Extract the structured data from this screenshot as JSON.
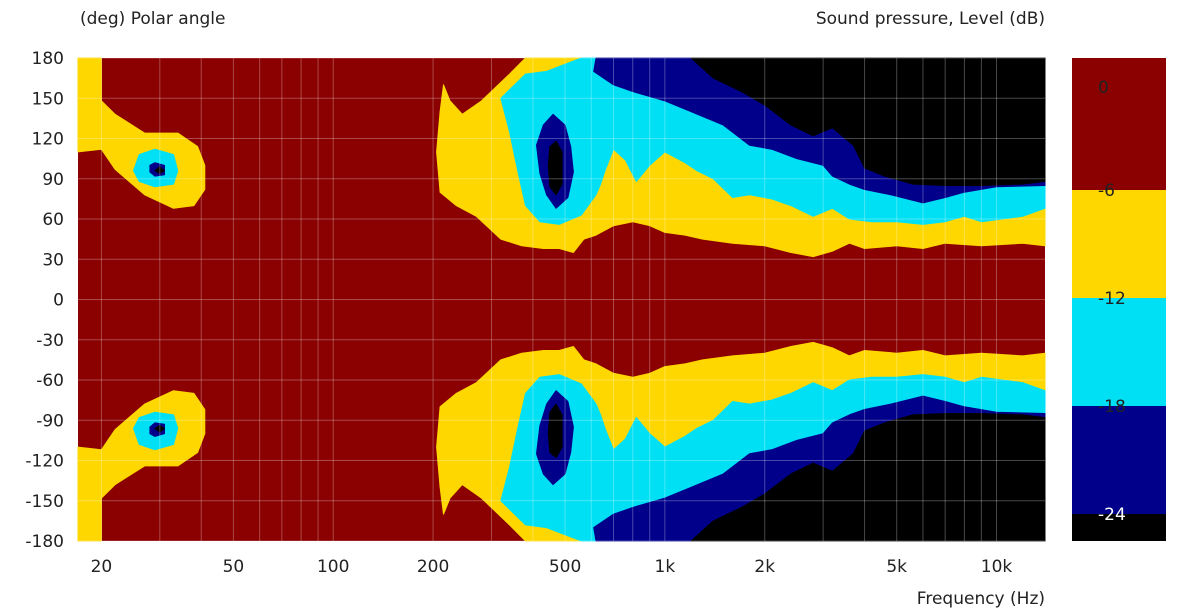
{
  "chart_data": {
    "type": "heatmap",
    "title_left": "(deg)  Polar angle",
    "title_right": "Sound pressure, Level  (dB)",
    "xlabel": "Frequency  (Hz)",
    "x_scale": "log",
    "xlim": [
      17,
      14000
    ],
    "ylim": [
      -180,
      180
    ],
    "x_ticks": [
      {
        "value": 20,
        "label": "20"
      },
      {
        "value": 50,
        "label": "50"
      },
      {
        "value": 100,
        "label": "100"
      },
      {
        "value": 200,
        "label": "200"
      },
      {
        "value": 500,
        "label": "500"
      },
      {
        "value": 1000,
        "label": "1k"
      },
      {
        "value": 2000,
        "label": "2k"
      },
      {
        "value": 5000,
        "label": "5k"
      },
      {
        "value": 10000,
        "label": "10k"
      }
    ],
    "y_ticks": [
      180,
      150,
      120,
      90,
      60,
      30,
      0,
      -30,
      -60,
      -90,
      -120,
      -150,
      -180
    ],
    "grid": true,
    "colorbar": {
      "position": "right",
      "levels": [
        {
          "label": "0",
          "color": "#8b0000"
        },
        {
          "label": "-6",
          "color": "#ffd700"
        },
        {
          "label": "-12",
          "color": "#00e0f5"
        },
        {
          "label": "-18",
          "color": "#00008b"
        },
        {
          "label": "-24",
          "color": "#000000"
        }
      ]
    },
    "contours_upper": [
      {
        "level": "-6",
        "color": "#ffd700",
        "regions": [
          [
            [
              17,
              110
            ],
            [
              20,
              112
            ],
            [
              22,
              97
            ],
            [
              27,
              78
            ],
            [
              33,
              68
            ],
            [
              38,
              70
            ],
            [
              41,
              82
            ],
            [
              41,
              100
            ],
            [
              39,
              114
            ],
            [
              34,
              124
            ],
            [
              27,
              124
            ],
            [
              22,
              138
            ],
            [
              20,
              148
            ],
            [
              20,
              180
            ],
            [
              17,
              180
            ]
          ],
          [
            [
              210,
              80
            ],
            [
              235,
              70
            ],
            [
              270,
              62
            ],
            [
              320,
              45
            ],
            [
              370,
              40
            ],
            [
              430,
              38
            ],
            [
              480,
              38
            ],
            [
              530,
              35
            ],
            [
              570,
              45
            ],
            [
              620,
              48
            ],
            [
              700,
              55
            ],
            [
              800,
              58
            ],
            [
              900,
              55
            ],
            [
              1000,
              50
            ],
            [
              1150,
              48
            ],
            [
              1300,
              45
            ],
            [
              1600,
              42
            ],
            [
              2000,
              40
            ],
            [
              2400,
              35
            ],
            [
              2800,
              32
            ],
            [
              3200,
              36
            ],
            [
              3600,
              42
            ],
            [
              4000,
              38
            ],
            [
              5000,
              40
            ],
            [
              6000,
              38
            ],
            [
              7000,
              42
            ],
            [
              9000,
              40
            ],
            [
              12000,
              42
            ],
            [
              14000,
              40
            ],
            [
              14000,
              180
            ],
            [
              380,
              180
            ],
            [
              340,
              168
            ],
            [
              280,
              148
            ],
            [
              245,
              138
            ],
            [
              225,
              148
            ],
            [
              215,
              160
            ],
            [
              210,
              140
            ],
            [
              205,
              110
            ]
          ]
        ]
      },
      {
        "level": "-12",
        "color": "#00e0f5",
        "regions": [
          [
            [
              25,
              96
            ],
            [
              26,
              88
            ],
            [
              29,
              84
            ],
            [
              33,
              86
            ],
            [
              34,
              96
            ],
            [
              33,
              108
            ],
            [
              29,
              112
            ],
            [
              26,
              108
            ]
          ],
          [
            [
              320,
              150
            ],
            [
              340,
              125
            ],
            [
              360,
              96
            ],
            [
              380,
              70
            ],
            [
              420,
              58
            ],
            [
              480,
              56
            ],
            [
              560,
              63
            ],
            [
              620,
              78
            ],
            [
              640,
              86
            ],
            [
              660,
              96
            ],
            [
              700,
              112
            ],
            [
              760,
              104
            ],
            [
              820,
              88
            ],
            [
              900,
              100
            ],
            [
              1000,
              110
            ],
            [
              1150,
              102
            ],
            [
              1250,
              96
            ],
            [
              1400,
              90
            ],
            [
              1600,
              76
            ],
            [
              1800,
              78
            ],
            [
              2100,
              75
            ],
            [
              2400,
              70
            ],
            [
              2800,
              62
            ],
            [
              3200,
              68
            ],
            [
              3600,
              60
            ],
            [
              4200,
              58
            ],
            [
              5000,
              58
            ],
            [
              6000,
              56
            ],
            [
              7000,
              58
            ],
            [
              8000,
              62
            ],
            [
              9000,
              58
            ],
            [
              12000,
              62
            ],
            [
              14000,
              68
            ],
            [
              14000,
              180
            ],
            [
              560,
              180
            ],
            [
              440,
              170
            ],
            [
              380,
              168
            ]
          ]
        ]
      },
      {
        "level": "-18",
        "color": "#00008b",
        "regions": [
          [
            [
              28,
              95
            ],
            [
              29,
              92
            ],
            [
              31,
              93
            ],
            [
              31,
              100
            ],
            [
              29,
              102
            ],
            [
              28,
              100
            ]
          ],
          [
            [
              410,
              115
            ],
            [
              420,
              94
            ],
            [
              440,
              78
            ],
            [
              470,
              68
            ],
            [
              510,
              76
            ],
            [
              530,
              95
            ],
            [
              520,
              114
            ],
            [
              500,
              130
            ],
            [
              460,
              138
            ],
            [
              430,
              130
            ]
          ],
          [
            [
              620,
              180
            ],
            [
              610,
              170
            ],
            [
              700,
              160
            ],
            [
              800,
              155
            ],
            [
              1000,
              148
            ],
            [
              1200,
              140
            ],
            [
              1500,
              130
            ],
            [
              1800,
              115
            ],
            [
              2100,
              112
            ],
            [
              2500,
              105
            ],
            [
              3000,
              100
            ],
            [
              3200,
              92
            ],
            [
              3600,
              86
            ],
            [
              4000,
              82
            ],
            [
              4800,
              78
            ],
            [
              6000,
              72
            ],
            [
              7000,
              76
            ],
            [
              8000,
              80
            ],
            [
              10000,
              84
            ],
            [
              14000,
              85
            ],
            [
              14000,
              180
            ]
          ]
        ]
      },
      {
        "level": "-24",
        "color": "#000000",
        "regions": [
          [
            [
              29,
              96
            ],
            [
              30,
              94
            ],
            [
              31,
              96
            ],
            [
              30,
              99
            ]
          ],
          [
            [
              445,
              100
            ],
            [
              450,
              84
            ],
            [
              470,
              78
            ],
            [
              490,
              86
            ],
            [
              490,
              110
            ],
            [
              470,
              118
            ],
            [
              450,
              114
            ]
          ],
          [
            [
              1200,
              180
            ],
            [
              1400,
              165
            ],
            [
              1700,
              155
            ],
            [
              2000,
              145
            ],
            [
              2400,
              130
            ],
            [
              2800,
              122
            ],
            [
              3200,
              128
            ],
            [
              3700,
              115
            ],
            [
              4000,
              98
            ],
            [
              4600,
              92
            ],
            [
              5600,
              86
            ],
            [
              7000,
              85
            ],
            [
              9000,
              85
            ],
            [
              12000,
              86
            ],
            [
              14000,
              88
            ],
            [
              14000,
              180
            ]
          ]
        ]
      }
    ]
  }
}
